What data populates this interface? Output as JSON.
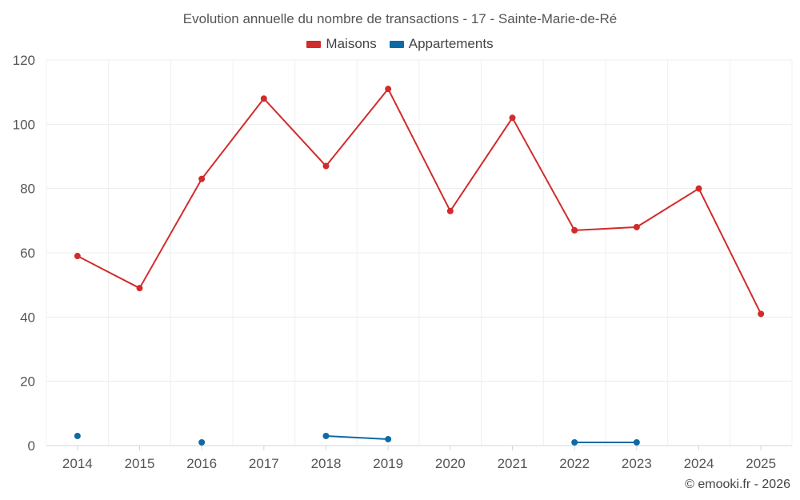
{
  "chart_data": {
    "type": "line",
    "title": "Evolution annuelle du nombre de transactions - 17 - Sainte-Marie-de-Ré",
    "categories": [
      "2014",
      "2015",
      "2016",
      "2017",
      "2018",
      "2019",
      "2020",
      "2021",
      "2022",
      "2023",
      "2024",
      "2025"
    ],
    "ylim": [
      0,
      120
    ],
    "yticks": [
      0,
      20,
      40,
      60,
      80,
      100,
      120
    ],
    "grid": true,
    "legend_position": "top-center",
    "series": [
      {
        "name": "Maisons",
        "color": "#d12b2b",
        "values": [
          59,
          49,
          83,
          108,
          87,
          111,
          73,
          102,
          67,
          68,
          80,
          41
        ]
      },
      {
        "name": "Appartements",
        "color": "#0e6aa5",
        "values": [
          3,
          null,
          1,
          null,
          3,
          2,
          null,
          null,
          1,
          1,
          null,
          null
        ]
      }
    ]
  },
  "credit": "© emooki.fr - 2026"
}
